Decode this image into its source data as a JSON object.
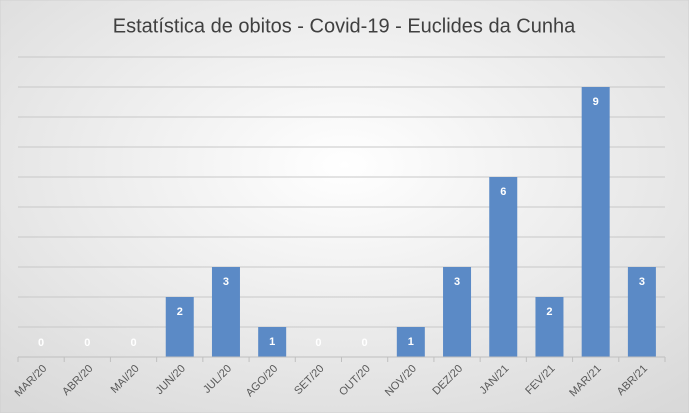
{
  "chart_data": {
    "type": "bar",
    "title": "Estatística de obitos - Covid-19 - Euclides da Cunha",
    "categories": [
      "MAR/20",
      "ABR/20",
      "MAI/20",
      "JUN/20",
      "JUL/20",
      "AGO/20",
      "SET/20",
      "OUT/20",
      "NOV/20",
      "DEZ/20",
      "JAN/21",
      "FEV/21",
      "MAR/21",
      "ABR/21"
    ],
    "values": [
      0,
      0,
      0,
      2,
      3,
      1,
      0,
      0,
      1,
      3,
      6,
      2,
      9,
      3
    ],
    "color": "#5b8ac6",
    "ylim": [
      0,
      10
    ],
    "yticks": [
      0,
      1,
      2,
      3,
      4,
      5,
      6,
      7,
      8,
      9,
      10
    ],
    "grid": true
  }
}
